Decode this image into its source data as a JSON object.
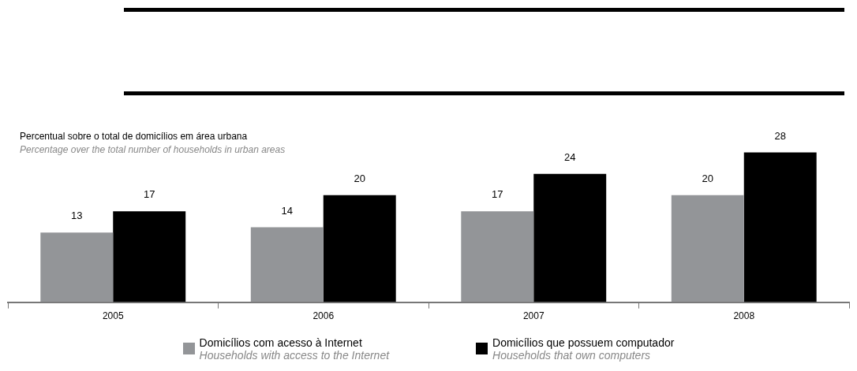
{
  "chart_data": {
    "type": "bar",
    "title": "Percentual sobre o total de domicílios em área urbana",
    "subtitle": "Percentage over the total number of households in urban areas",
    "categories": [
      "2005",
      "2006",
      "2007",
      "2008"
    ],
    "series": [
      {
        "name": "Domicílios com acesso à Internet\nHouseholds with access to the Internet",
        "color": "#939598",
        "values": [
          13,
          14,
          17,
          20
        ]
      },
      {
        "name": "Domicílios que possuem computador\nHouseholds that own computers",
        "color": "#000000",
        "values": [
          17,
          20,
          24,
          28
        ]
      }
    ],
    "data_labels": true,
    "legend": "bottom",
    "grid": false
  }
}
